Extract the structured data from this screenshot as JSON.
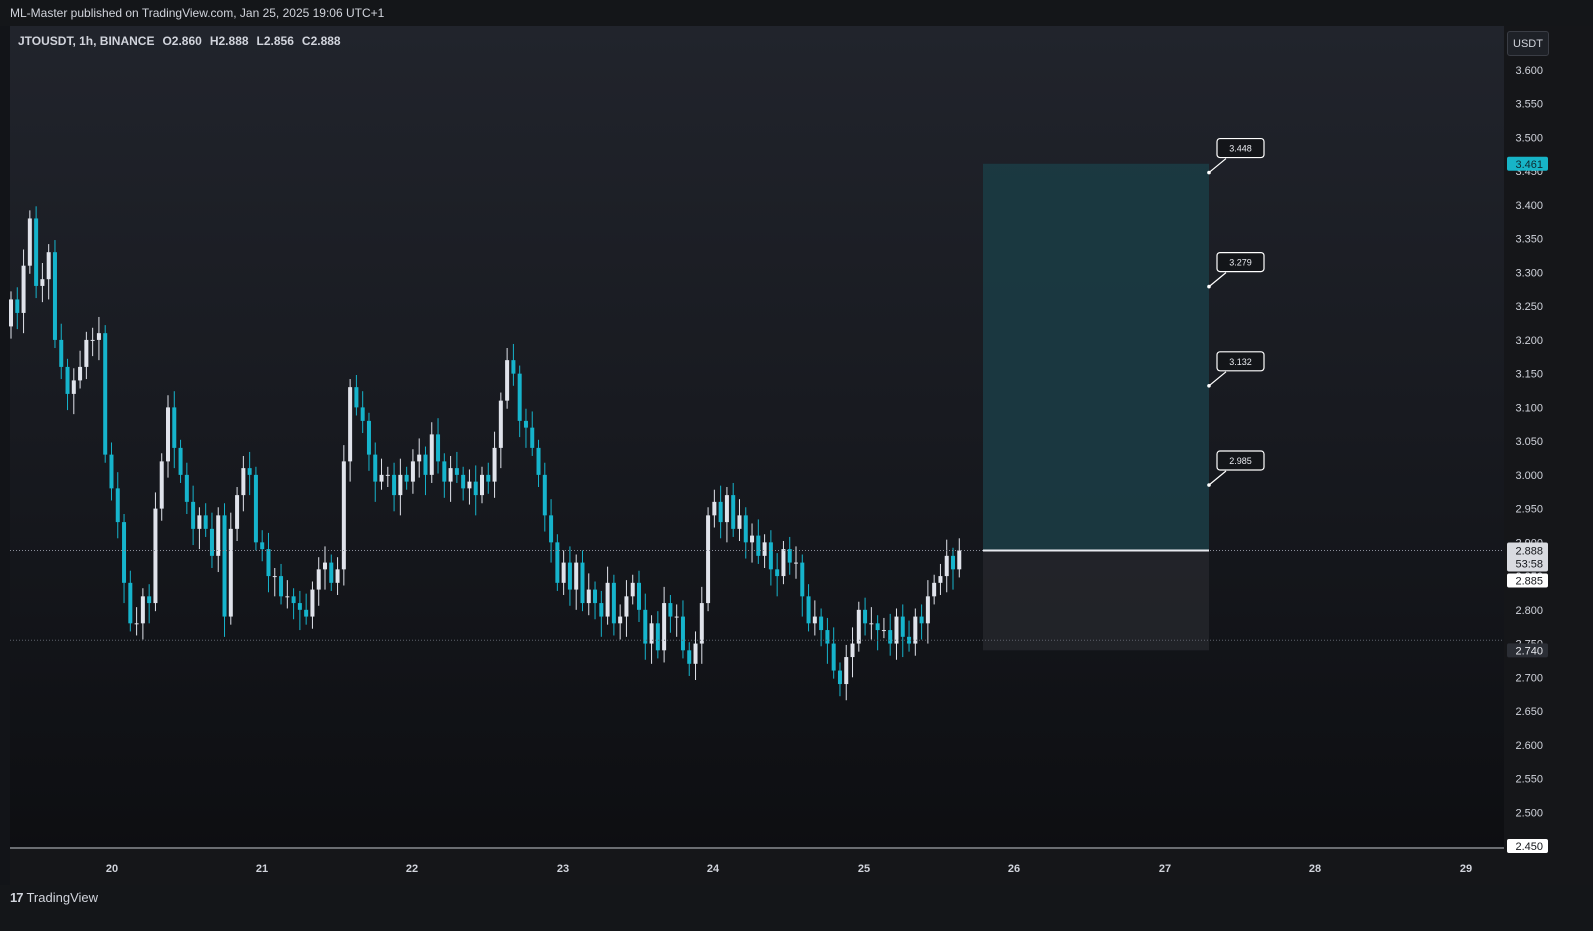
{
  "header": {
    "publish_line": "ML-Master published on TradingView.com, Jan 25, 2025 19:06 UTC+1"
  },
  "legend": {
    "symbol": "JTOUSDT, 1h, BINANCE",
    "open": "O2.860",
    "high": "H2.888",
    "low": "L2.856",
    "close": "C2.888"
  },
  "axis": {
    "currency": "USDT",
    "price_ticks": [
      "3.600",
      "3.550",
      "3.500",
      "3.450",
      "3.400",
      "3.350",
      "3.300",
      "3.250",
      "3.200",
      "3.150",
      "3.100",
      "3.050",
      "3.000",
      "2.950",
      "2.900",
      "2.850",
      "2.800",
      "2.750",
      "2.700",
      "2.650",
      "2.600",
      "2.550",
      "2.500",
      "2.450"
    ],
    "date_ticks": [
      "20",
      "21",
      "22",
      "23",
      "24",
      "25",
      "26",
      "27",
      "28",
      "29"
    ]
  },
  "price_badges": {
    "target": "3.461",
    "last": "2.888",
    "countdown": "53:58",
    "bid": "2.885",
    "stop": "2.740",
    "bottom": "2.450"
  },
  "targets": [
    "3.448",
    "3.279",
    "3.132",
    "2.985"
  ],
  "footer": {
    "brand": "TradingView"
  },
  "colors": {
    "up": "#e0e3eb",
    "down": "#16b4cc",
    "target_zone": "#1b3b44",
    "stop_zone": "#24262c",
    "accent": "#17b4c7"
  },
  "chart_data": {
    "type": "candlestick",
    "symbol": "JTOUSDT",
    "interval": "1h",
    "exchange": "BINANCE",
    "ylim": [
      2.45,
      3.6
    ],
    "x_date_labels": [
      "20",
      "21",
      "22",
      "23",
      "24",
      "25",
      "26",
      "27",
      "28",
      "29"
    ],
    "closes": [
      3.26,
      3.24,
      3.31,
      3.38,
      3.28,
      3.29,
      3.33,
      3.2,
      3.16,
      3.12,
      3.14,
      3.16,
      3.2,
      3.2,
      3.21,
      3.03,
      2.98,
      2.93,
      2.84,
      2.78,
      2.78,
      2.82,
      2.81,
      2.95,
      3.02,
      3.1,
      3.04,
      3.0,
      2.96,
      2.92,
      2.94,
      2.92,
      2.88,
      2.94,
      2.79,
      2.92,
      2.97,
      3.01,
      3.0,
      2.9,
      2.89,
      2.85,
      2.85,
      2.82,
      2.82,
      2.81,
      2.8,
      2.79,
      2.83,
      2.86,
      2.87,
      2.84,
      2.86,
      3.02,
      3.13,
      3.1,
      3.08,
      3.03,
      2.99,
      3.0,
      3.0,
      2.97,
      3.0,
      2.99,
      3.02,
      3.03,
      3.0,
      3.06,
      3.02,
      2.99,
      3.01,
      3.0,
      2.98,
      2.99,
      2.97,
      3.0,
      2.99,
      3.04,
      3.11,
      3.17,
      3.15,
      3.08,
      3.07,
      3.04,
      3.0,
      2.94,
      2.9,
      2.84,
      2.87,
      2.83,
      2.87,
      2.81,
      2.83,
      2.81,
      2.79,
      2.84,
      2.78,
      2.79,
      2.82,
      2.84,
      2.8,
      2.75,
      2.78,
      2.74,
      2.81,
      2.79,
      2.79,
      2.74,
      2.72,
      2.75,
      2.81,
      2.94,
      2.96,
      2.93,
      2.97,
      2.92,
      2.94,
      2.9,
      2.91,
      2.88,
      2.9,
      2.86,
      2.85,
      2.89,
      2.87,
      2.87,
      2.82,
      2.78,
      2.79,
      2.77,
      2.75,
      2.71,
      2.69,
      2.73,
      2.75,
      2.8,
      2.78,
      2.78,
      2.77,
      2.77,
      2.75,
      2.79,
      2.76,
      2.75,
      2.79,
      2.78,
      2.82,
      2.84,
      2.85,
      2.88,
      2.86,
      2.888
    ],
    "target_zone": {
      "top": 3.461,
      "entry": 2.888
    },
    "stop_zone": {
      "top": 2.888,
      "bottom": 2.74
    },
    "take_profit_levels": [
      3.448,
      3.279,
      3.132,
      2.985
    ],
    "last_price": 2.888,
    "stop_price": 2.74
  }
}
